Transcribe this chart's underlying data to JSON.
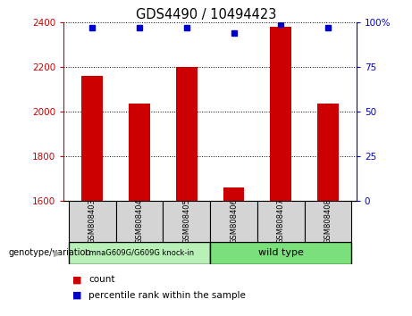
{
  "title": "GDS4490 / 10494423",
  "samples": [
    "GSM808403",
    "GSM808404",
    "GSM808405",
    "GSM808406",
    "GSM808407",
    "GSM808408"
  ],
  "count_values": [
    2160,
    2035,
    2200,
    1660,
    2380,
    2035
  ],
  "percentile_values": [
    97,
    97,
    97,
    94,
    99,
    97
  ],
  "ylim_left": [
    1600,
    2400
  ],
  "ylim_right": [
    0,
    100
  ],
  "yticks_left": [
    1600,
    1800,
    2000,
    2200,
    2400
  ],
  "yticks_right": [
    0,
    25,
    50,
    75,
    100
  ],
  "ytick_labels_right": [
    "0",
    "25",
    "50",
    "75",
    "100%"
  ],
  "bar_color": "#cc0000",
  "marker_color": "#0000cc",
  "group1_label": "LmnaG609G/G609G knock-in",
  "group2_label": "wild type",
  "group1_indices": [
    0,
    1,
    2
  ],
  "group2_indices": [
    3,
    4,
    5
  ],
  "group1_color": "#b8f0b8",
  "group2_color": "#7be07b",
  "sample_box_color": "#d4d4d4",
  "legend_count_label": "count",
  "legend_percentile_label": "percentile rank within the sample",
  "genotype_label": "genotype/variation",
  "left_tick_color": "#cc0000",
  "right_tick_color": "#0000cc",
  "bar_width": 0.45
}
